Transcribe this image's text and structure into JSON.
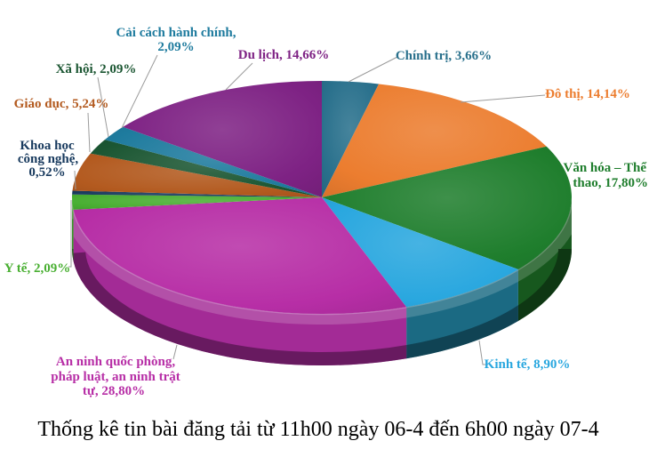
{
  "title": "Thống kê tin bài đăng tải từ 11h00 ngày 06-4 đến 6h00 ngày 07-4",
  "chart_data": {
    "type": "pie",
    "is_3d": true,
    "start_angle_deg": -90,
    "direction": "clockwise",
    "value_format": "comma-decimal-percent",
    "slices": [
      {
        "label": "Chính trị",
        "value": 3.66,
        "color": "#29708C",
        "label_lines": [
          "Chính trị, 3,66%"
        ]
      },
      {
        "label": "Đô thị",
        "value": 14.14,
        "color": "#EC7D2F",
        "label_lines": [
          "Đô thị, 14,14%"
        ]
      },
      {
        "label": "Văn hóa – Thể thao",
        "value": 17.8,
        "color": "#1F7E2D",
        "wall": "#17581E",
        "label_lines": [
          "Văn hóa – Thể",
          "thao, 17,80%"
        ]
      },
      {
        "label": "Kinh tế",
        "value": 8.9,
        "color": "#29A7DF",
        "wall": "#1B6A83",
        "label_lines": [
          "Kinh tế, 8,90%"
        ]
      },
      {
        "label": "An ninh quốc phòng, pháp luật, an ninh trật tự",
        "value": 28.8,
        "color": "#B72EA6",
        "wall": "#A32B96",
        "label_lines": [
          "An ninh quốc phòng,",
          "pháp luật, an ninh trật",
          "tự, 28,80%"
        ]
      },
      {
        "label": "Y tế",
        "value": 2.09,
        "color": "#49AF32",
        "wall": "#349623",
        "label_lines": [
          "Y tế, 2,09%"
        ]
      },
      {
        "label": "Khoa học công nghệ",
        "value": 0.52,
        "color": "#183A5E",
        "label_lines": [
          "Khoa học",
          "công nghệ,",
          "0,52%"
        ]
      },
      {
        "label": "Giáo dục",
        "value": 5.24,
        "color": "#B35A1F",
        "label_lines": [
          "Giáo dục, 5,24%"
        ]
      },
      {
        "label": "Xã hội",
        "value": 2.09,
        "color": "#1B5632",
        "label_lines": [
          "Xã hội, 2,09%"
        ]
      },
      {
        "label": "Cải cách hành chính",
        "value": 2.09,
        "color": "#1E7B9E",
        "label_lines": [
          "Cải cách hành chính,",
          "2,09%"
        ]
      },
      {
        "label": "Du lịch",
        "value": 14.66,
        "color": "#7E2284",
        "label_lines": [
          "Du lịch, 14,66%"
        ]
      }
    ]
  }
}
